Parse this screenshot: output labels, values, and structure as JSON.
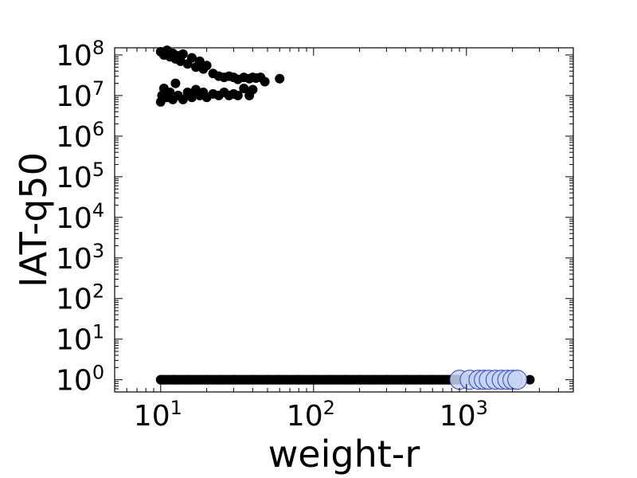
{
  "chart_data": {
    "type": "scatter",
    "title": "",
    "xlabel": "weight-r",
    "ylabel": "IAT-q50",
    "xscale": "log",
    "yscale": "log",
    "xlim": [
      5,
      5000
    ],
    "ylim": [
      0.5,
      150000000
    ],
    "xticks": [
      {
        "base": "10",
        "exp": "1",
        "value": 10
      },
      {
        "base": "10",
        "exp": "2",
        "value": 100
      },
      {
        "base": "10",
        "exp": "3",
        "value": 1000
      }
    ],
    "yticks": [
      {
        "base": "10",
        "exp": "0",
        "value": 1
      },
      {
        "base": "10",
        "exp": "1",
        "value": 10
      },
      {
        "base": "10",
        "exp": "2",
        "value": 100
      },
      {
        "base": "10",
        "exp": "3",
        "value": 1000
      },
      {
        "base": "10",
        "exp": "4",
        "value": 10000
      },
      {
        "base": "10",
        "exp": "5",
        "value": 100000
      },
      {
        "base": "10",
        "exp": "6",
        "value": 1000000
      },
      {
        "base": "10",
        "exp": "7",
        "value": 10000000
      },
      {
        "base": "10",
        "exp": "8",
        "value": 100000000
      }
    ],
    "grid": false,
    "colors": {
      "points": "#000000",
      "highlight_fill": "#c6d6f2",
      "highlight_edge": "#2f3fd0"
    },
    "series": [
      {
        "points": [
          [
            10,
            120000000
          ],
          [
            10.5,
            100000000
          ],
          [
            11,
            130000000
          ],
          [
            11.5,
            90000000
          ],
          [
            12,
            110000000
          ],
          [
            12.5,
            80000000
          ],
          [
            13,
            95000000
          ],
          [
            13.5,
            70000000
          ],
          [
            14,
            105000000
          ],
          [
            15,
            60000000
          ],
          [
            16,
            85000000
          ],
          [
            17,
            50000000
          ],
          [
            18,
            70000000
          ],
          [
            19,
            45000000
          ],
          [
            20,
            55000000
          ],
          [
            22,
            35000000
          ],
          [
            24,
            30000000
          ],
          [
            26,
            28000000
          ],
          [
            28,
            30000000
          ],
          [
            30,
            28000000
          ],
          [
            32,
            25000000
          ],
          [
            35,
            28000000
          ],
          [
            38,
            26000000
          ],
          [
            40,
            28000000
          ],
          [
            42,
            27000000
          ],
          [
            45,
            28000000
          ],
          [
            48,
            22000000
          ],
          [
            60,
            26000000
          ],
          [
            10,
            7000000
          ],
          [
            10.2,
            10000000
          ],
          [
            10.5,
            15000000
          ],
          [
            11,
            9000000
          ],
          [
            11.5,
            12000000
          ],
          [
            12,
            8000000
          ],
          [
            12.5,
            20000000
          ],
          [
            13,
            10000000
          ],
          [
            14,
            8000000
          ],
          [
            15,
            12000000
          ],
          [
            16,
            9000000
          ],
          [
            17,
            14000000
          ],
          [
            18,
            10000000
          ],
          [
            19,
            12000000
          ],
          [
            20,
            9000000
          ],
          [
            22,
            11000000
          ],
          [
            24,
            10000000
          ],
          [
            26,
            12000000
          ],
          [
            28,
            10000000
          ],
          [
            30,
            11000000
          ],
          [
            32,
            10000000
          ],
          [
            35,
            15000000
          ],
          [
            38,
            10000000
          ],
          [
            40,
            14000000
          ]
        ]
      },
      {
        "points": [
          [
            10,
            1
          ],
          [
            12,
            1
          ],
          [
            15,
            1
          ],
          [
            20,
            1
          ],
          [
            25,
            1
          ],
          [
            30,
            1
          ],
          [
            40,
            1
          ],
          [
            50,
            1
          ],
          [
            60,
            1
          ],
          [
            80,
            1
          ],
          [
            100,
            1
          ],
          [
            130,
            1
          ],
          [
            160,
            1
          ],
          [
            200,
            1
          ],
          [
            250,
            1
          ],
          [
            300,
            1
          ],
          [
            400,
            1
          ],
          [
            500,
            1
          ],
          [
            600,
            1
          ],
          [
            800,
            1
          ],
          [
            1000,
            1
          ],
          [
            1300,
            1
          ],
          [
            1600,
            1
          ],
          [
            2000,
            1
          ],
          [
            2600,
            1
          ]
        ]
      },
      {
        "points": [
          [
            900,
            1
          ],
          [
            1050,
            1
          ],
          [
            1200,
            1
          ],
          [
            1300,
            1
          ],
          [
            1400,
            1
          ],
          [
            1550,
            1
          ],
          [
            1700,
            1
          ],
          [
            1850,
            1
          ],
          [
            2000,
            1
          ],
          [
            2150,
            1
          ]
        ]
      }
    ]
  }
}
